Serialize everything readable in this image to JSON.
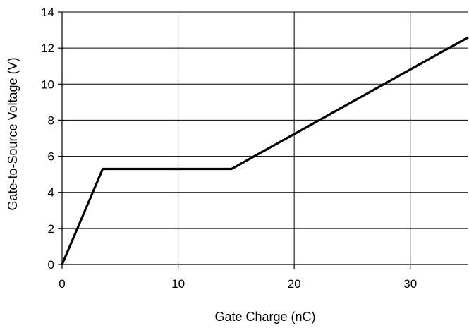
{
  "chart_data": {
    "type": "line",
    "title": "",
    "xlabel": "Gate Charge (nC)",
    "ylabel": "Gate-to-Source Voltage (V)",
    "xlim": [
      0,
      35
    ],
    "ylim": [
      0,
      14
    ],
    "xticks": [
      0,
      10,
      20,
      30
    ],
    "yticks": [
      0,
      2,
      4,
      6,
      8,
      10,
      12,
      14
    ],
    "grid": true,
    "legend": "none",
    "series": [
      {
        "color": "#000000",
        "x": [
          0,
          3.5,
          14.6,
          35
        ],
        "y": [
          0,
          5.3,
          5.3,
          12.6
        ]
      }
    ]
  }
}
